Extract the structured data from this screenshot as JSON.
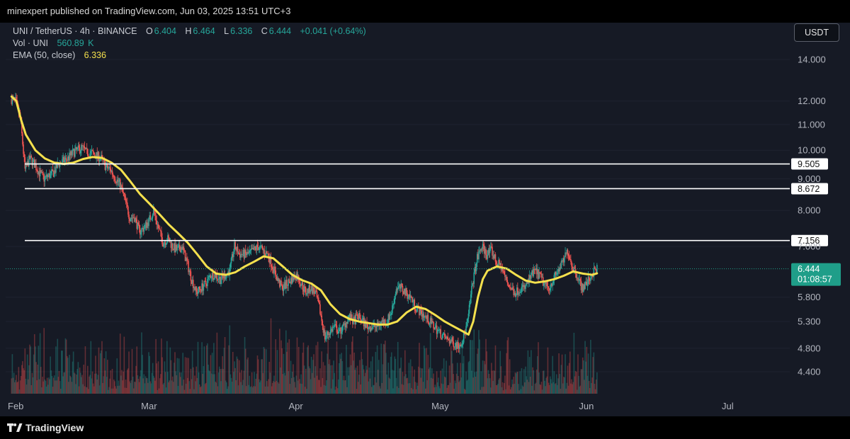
{
  "header": {
    "published_text": "minexpert published on TradingView.com, Jun 03, 2025 13:51 UTC+3"
  },
  "legend": {
    "symbol": "UNI / TetherUS · 4h · BINANCE",
    "open_label": "O",
    "open_value": "6.404",
    "high_label": "H",
    "high_value": "6.464",
    "low_label": "L",
    "low_value": "6.336",
    "close_label": "C",
    "close_value": "6.444",
    "change": "+0.041 (+0.64%)",
    "vol_label": "Vol · UNI",
    "vol_value": "560.89",
    "vol_unit": "K",
    "ema_label": "EMA (50, close)",
    "ema_value": "6.336"
  },
  "currency_button": "USDT",
  "footer": {
    "brand": "TradingView"
  },
  "colors": {
    "background": "#161a25",
    "up": "#26a69a",
    "down": "#ef5350",
    "ema": "#f4e04d",
    "level_line": "#ffffff",
    "price_tag": "#1f9e89"
  },
  "chart_data": {
    "type": "candlestick",
    "symbol": "UNI/USDT",
    "interval": "4h",
    "scale": "log",
    "y_ticks": [
      14.0,
      12.0,
      11.0,
      10.0,
      9.0,
      8.0,
      7.0,
      5.8,
      5.3,
      4.8,
      4.4
    ],
    "y_tick_labels": [
      "14.000",
      "12.000",
      "11.000",
      "10.000",
      "9.000",
      "8.000",
      "7.000",
      "5.800",
      "5.300",
      "4.800",
      "4.400"
    ],
    "ylim": [
      4.2,
      15.0
    ],
    "x_ticks": [
      "2025-02-01",
      "2025-03-01",
      "2025-04-01",
      "2025-05-01",
      "2025-06-01",
      "2025-07-01"
    ],
    "x_tick_labels": [
      "Feb",
      "Mar",
      "Apr",
      "May",
      "Jun",
      "Jul"
    ],
    "xlim": [
      "2025-02-01",
      "2025-07-19"
    ],
    "horizontal_levels": [
      {
        "value": 9.505,
        "label": "9.505"
      },
      {
        "value": 8.672,
        "label": "8.672"
      },
      {
        "value": 7.156,
        "label": "7.156"
      }
    ],
    "last_price": {
      "value": 6.444,
      "label": "6.444",
      "countdown": "01:08:57"
    },
    "price_path": [
      [
        "2025-01-31",
        12.1
      ],
      [
        "2025-02-01",
        12.0
      ],
      [
        "2025-02-02",
        11.3
      ],
      [
        "2025-02-03",
        9.3
      ],
      [
        "2025-02-04",
        9.7
      ],
      [
        "2025-02-05",
        9.5
      ],
      [
        "2025-02-06",
        9.2
      ],
      [
        "2025-02-07",
        9.0
      ],
      [
        "2025-02-08",
        9.1
      ],
      [
        "2025-02-09",
        9.2
      ],
      [
        "2025-02-10",
        9.5
      ],
      [
        "2025-02-11",
        9.6
      ],
      [
        "2025-02-12",
        9.7
      ],
      [
        "2025-02-13",
        9.9
      ],
      [
        "2025-02-14",
        10.0
      ],
      [
        "2025-02-15",
        10.1
      ],
      [
        "2025-02-16",
        9.9
      ],
      [
        "2025-02-17",
        9.9
      ],
      [
        "2025-02-18",
        9.8
      ],
      [
        "2025-02-19",
        9.7
      ],
      [
        "2025-02-20",
        9.4
      ],
      [
        "2025-02-21",
        9.3
      ],
      [
        "2025-02-22",
        9.0
      ],
      [
        "2025-02-23",
        8.8
      ],
      [
        "2025-02-24",
        8.3
      ],
      [
        "2025-02-25",
        7.8
      ],
      [
        "2025-02-26",
        7.8
      ],
      [
        "2025-02-27",
        7.4
      ],
      [
        "2025-02-28",
        7.5
      ],
      [
        "2025-03-01",
        7.7
      ],
      [
        "2025-03-02",
        8.0
      ],
      [
        "2025-03-03",
        7.5
      ],
      [
        "2025-03-04",
        7.1
      ],
      [
        "2025-03-05",
        7.2
      ],
      [
        "2025-03-06",
        7.0
      ],
      [
        "2025-03-07",
        6.9
      ],
      [
        "2025-03-08",
        7.0
      ],
      [
        "2025-03-09",
        6.6
      ],
      [
        "2025-03-10",
        6.2
      ],
      [
        "2025-03-11",
        5.9
      ],
      [
        "2025-03-12",
        6.0
      ],
      [
        "2025-03-13",
        6.1
      ],
      [
        "2025-03-14",
        6.3
      ],
      [
        "2025-03-15",
        6.3
      ],
      [
        "2025-03-16",
        6.2
      ],
      [
        "2025-03-17",
        6.3
      ],
      [
        "2025-03-18",
        6.4
      ],
      [
        "2025-03-19",
        7.0
      ],
      [
        "2025-03-20",
        6.8
      ],
      [
        "2025-03-21",
        6.8
      ],
      [
        "2025-03-22",
        6.8
      ],
      [
        "2025-03-23",
        6.9
      ],
      [
        "2025-03-24",
        7.0
      ],
      [
        "2025-03-25",
        6.9
      ],
      [
        "2025-03-26",
        6.8
      ],
      [
        "2025-03-27",
        6.5
      ],
      [
        "2025-03-28",
        6.2
      ],
      [
        "2025-03-29",
        6.0
      ],
      [
        "2025-03-30",
        6.1
      ],
      [
        "2025-03-31",
        6.2
      ],
      [
        "2025-04-01",
        6.3
      ],
      [
        "2025-04-02",
        6.1
      ],
      [
        "2025-04-03",
        5.9
      ],
      [
        "2025-04-04",
        6.0
      ],
      [
        "2025-04-05",
        5.9
      ],
      [
        "2025-04-06",
        5.5
      ],
      [
        "2025-04-07",
        5.0
      ],
      [
        "2025-04-08",
        5.1
      ],
      [
        "2025-04-09",
        5.2
      ],
      [
        "2025-04-10",
        5.1
      ],
      [
        "2025-04-11",
        5.2
      ],
      [
        "2025-04-12",
        5.4
      ],
      [
        "2025-04-13",
        5.3
      ],
      [
        "2025-04-14",
        5.4
      ],
      [
        "2025-04-15",
        5.3
      ],
      [
        "2025-04-16",
        5.2
      ],
      [
        "2025-04-17",
        5.2
      ],
      [
        "2025-04-18",
        5.2
      ],
      [
        "2025-04-19",
        5.3
      ],
      [
        "2025-04-20",
        5.3
      ],
      [
        "2025-04-21",
        5.5
      ],
      [
        "2025-04-22",
        6.0
      ],
      [
        "2025-04-23",
        6.0
      ],
      [
        "2025-04-24",
        5.9
      ],
      [
        "2025-04-25",
        5.8
      ],
      [
        "2025-04-26",
        5.6
      ],
      [
        "2025-04-27",
        5.5
      ],
      [
        "2025-04-28",
        5.4
      ],
      [
        "2025-04-29",
        5.3
      ],
      [
        "2025-04-30",
        5.2
      ],
      [
        "2025-05-01",
        5.1
      ],
      [
        "2025-05-02",
        5.0
      ],
      [
        "2025-05-03",
        4.95
      ],
      [
        "2025-05-04",
        4.9
      ],
      [
        "2025-05-05",
        4.85
      ],
      [
        "2025-05-06",
        4.95
      ],
      [
        "2025-05-07",
        5.3
      ],
      [
        "2025-05-08",
        6.1
      ],
      [
        "2025-05-09",
        6.7
      ],
      [
        "2025-05-10",
        7.0
      ],
      [
        "2025-05-11",
        6.8
      ],
      [
        "2025-05-12",
        6.9
      ],
      [
        "2025-05-13",
        6.6
      ],
      [
        "2025-05-14",
        6.5
      ],
      [
        "2025-05-15",
        6.2
      ],
      [
        "2025-05-16",
        6.0
      ],
      [
        "2025-05-17",
        5.9
      ],
      [
        "2025-05-18",
        6.0
      ],
      [
        "2025-05-19",
        6.0
      ],
      [
        "2025-05-20",
        6.2
      ],
      [
        "2025-05-21",
        6.4
      ],
      [
        "2025-05-22",
        6.3
      ],
      [
        "2025-05-23",
        6.1
      ],
      [
        "2025-05-24",
        6.0
      ],
      [
        "2025-05-25",
        6.2
      ],
      [
        "2025-05-26",
        6.4
      ],
      [
        "2025-05-27",
        6.6
      ],
      [
        "2025-05-28",
        6.9
      ],
      [
        "2025-05-29",
        6.5
      ],
      [
        "2025-05-30",
        6.3
      ],
      [
        "2025-05-31",
        6.0
      ],
      [
        "2025-06-01",
        6.1
      ],
      [
        "2025-06-02",
        6.3
      ],
      [
        "2025-06-03",
        6.444
      ]
    ],
    "ema_path": [
      [
        "2025-01-31",
        12.2
      ],
      [
        "2025-02-01",
        12.0
      ],
      [
        "2025-02-02",
        11.2
      ],
      [
        "2025-02-03",
        10.6
      ],
      [
        "2025-02-05",
        10.0
      ],
      [
        "2025-02-07",
        9.7
      ],
      [
        "2025-02-09",
        9.55
      ],
      [
        "2025-02-11",
        9.5
      ],
      [
        "2025-02-13",
        9.55
      ],
      [
        "2025-02-15",
        9.68
      ],
      [
        "2025-02-17",
        9.75
      ],
      [
        "2025-02-19",
        9.72
      ],
      [
        "2025-02-21",
        9.55
      ],
      [
        "2025-02-23",
        9.3
      ],
      [
        "2025-02-25",
        8.9
      ],
      [
        "2025-02-27",
        8.5
      ],
      [
        "2025-03-01",
        8.2
      ],
      [
        "2025-03-03",
        7.9
      ],
      [
        "2025-03-05",
        7.6
      ],
      [
        "2025-03-07",
        7.35
      ],
      [
        "2025-03-09",
        7.1
      ],
      [
        "2025-03-11",
        6.8
      ],
      [
        "2025-03-13",
        6.5
      ],
      [
        "2025-03-15",
        6.33
      ],
      [
        "2025-03-17",
        6.3
      ],
      [
        "2025-03-19",
        6.36
      ],
      [
        "2025-03-21",
        6.5
      ],
      [
        "2025-03-23",
        6.62
      ],
      [
        "2025-03-25",
        6.75
      ],
      [
        "2025-03-27",
        6.7
      ],
      [
        "2025-03-29",
        6.5
      ],
      [
        "2025-03-31",
        6.3
      ],
      [
        "2025-04-02",
        6.18
      ],
      [
        "2025-04-04",
        6.1
      ],
      [
        "2025-04-06",
        5.95
      ],
      [
        "2025-04-08",
        5.65
      ],
      [
        "2025-04-10",
        5.45
      ],
      [
        "2025-04-12",
        5.35
      ],
      [
        "2025-04-14",
        5.3
      ],
      [
        "2025-04-16",
        5.27
      ],
      [
        "2025-04-18",
        5.24
      ],
      [
        "2025-04-20",
        5.24
      ],
      [
        "2025-04-22",
        5.3
      ],
      [
        "2025-04-24",
        5.48
      ],
      [
        "2025-04-26",
        5.6
      ],
      [
        "2025-04-28",
        5.55
      ],
      [
        "2025-04-30",
        5.43
      ],
      [
        "2025-05-02",
        5.3
      ],
      [
        "2025-05-04",
        5.2
      ],
      [
        "2025-05-06",
        5.1
      ],
      [
        "2025-05-07",
        5.05
      ],
      [
        "2025-05-08",
        5.3
      ],
      [
        "2025-05-09",
        5.8
      ],
      [
        "2025-05-10",
        6.2
      ],
      [
        "2025-05-11",
        6.4
      ],
      [
        "2025-05-13",
        6.5
      ],
      [
        "2025-05-15",
        6.45
      ],
      [
        "2025-05-17",
        6.3
      ],
      [
        "2025-05-19",
        6.17
      ],
      [
        "2025-05-21",
        6.12
      ],
      [
        "2025-05-23",
        6.15
      ],
      [
        "2025-05-25",
        6.2
      ],
      [
        "2025-05-27",
        6.28
      ],
      [
        "2025-05-29",
        6.38
      ],
      [
        "2025-05-31",
        6.33
      ],
      [
        "2025-06-02",
        6.3
      ],
      [
        "2025-06-03",
        6.336
      ]
    ],
    "volume_description": "per-candle volume bars along the bottom of the panel, colored by candle direction"
  }
}
